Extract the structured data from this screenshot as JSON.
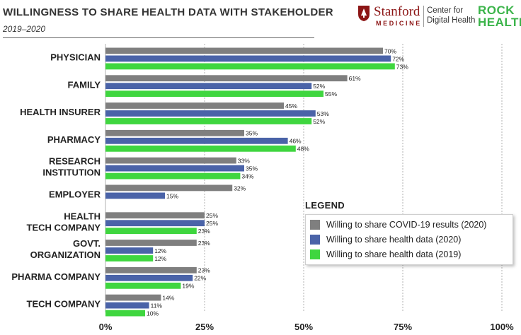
{
  "header": {
    "title": "WILLINGNESS TO SHARE HEALTH DATA WITH STAKEHOLDER",
    "subtitle": "2019–2020"
  },
  "logos": {
    "stanford_word": "Stanford",
    "stanford_medicine": "MEDICINE",
    "center_line1": "Center for",
    "center_line2": "Digital Health",
    "rock_line1": "ROCK",
    "rock_line2": "HEALTH"
  },
  "colors": {
    "covid_2020": "#7f7f7f",
    "health_2020": "#4a63a8",
    "health_2019": "#3fd63f",
    "gridline": "#b0b0b0"
  },
  "legend": {
    "title": "LEGEND",
    "items": [
      {
        "label": "Willing to share COVID-19 results (2020)",
        "color": "#7f7f7f"
      },
      {
        "label": "Willing to share health data (2020)",
        "color": "#4a63a8"
      },
      {
        "label": "Willing to share health data (2019)",
        "color": "#3fd63f"
      }
    ]
  },
  "chart_data": {
    "type": "bar",
    "orientation": "horizontal",
    "title": "WILLINGNESS TO SHARE HEALTH DATA WITH STAKEHOLDER",
    "subtitle": "2019–2020",
    "categories": [
      [
        "PHYSICIAN"
      ],
      [
        "FAMILY"
      ],
      [
        "HEALTH INSURER"
      ],
      [
        "PHARMACY"
      ],
      [
        "RESEARCH",
        "INSTITUTION"
      ],
      [
        "EMPLOYER"
      ],
      [
        "HEALTH",
        "TECH COMPANY"
      ],
      [
        "GOVT.",
        "ORGANIZATION"
      ],
      [
        "PHARMA COMPANY"
      ],
      [
        "TECH COMPANY"
      ]
    ],
    "series": [
      {
        "name": "Willing to share COVID-19 results (2020)",
        "color": "#7f7f7f",
        "values": [
          70,
          61,
          45,
          35,
          33,
          32,
          25,
          23,
          23,
          14
        ]
      },
      {
        "name": "Willing to share health data (2020)",
        "color": "#4a63a8",
        "values": [
          72,
          52,
          53,
          46,
          35,
          15,
          25,
          12,
          22,
          11
        ]
      },
      {
        "name": "Willing to share health data (2019)",
        "color": "#3fd63f",
        "values": [
          73,
          55,
          52,
          48,
          34,
          null,
          23,
          12,
          19,
          10
        ]
      }
    ],
    "value_suffix": "%",
    "xlim": [
      0,
      100
    ],
    "xticks": [
      0,
      25,
      50,
      75,
      100
    ],
    "xtick_labels": [
      "0%",
      "25%",
      "50%",
      "75%",
      "100%"
    ],
    "grid": "vertical dashed",
    "legend_position": "bottom-right"
  }
}
